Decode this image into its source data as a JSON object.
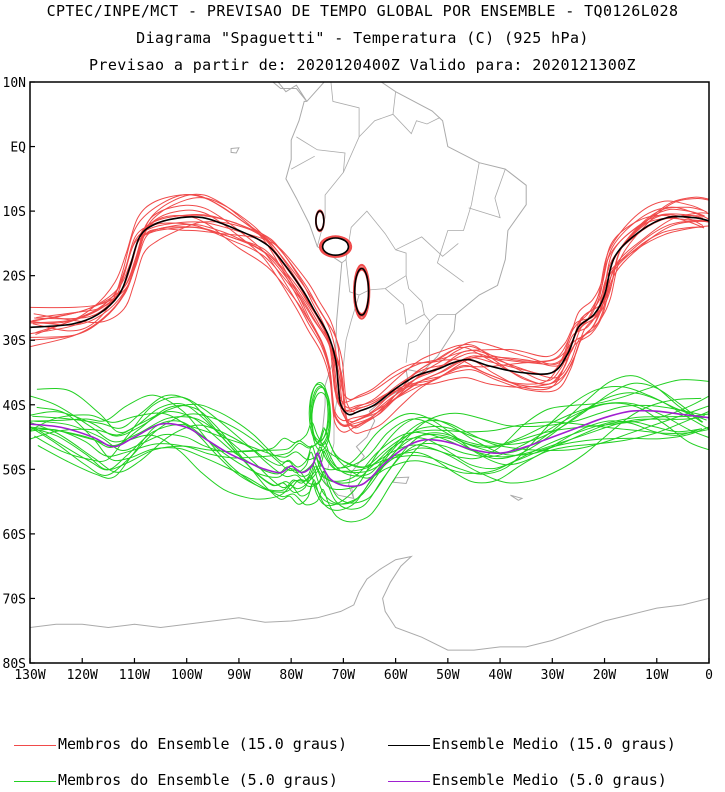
{
  "header": {
    "line1": "CPTEC/INPE/MCT - PREVISAO DE TEMPO GLOBAL POR ENSEMBLE - TQ0126L028",
    "line2": "Diagrama \"Spaguetti\" - Temperatura (C) (925 hPa)",
    "line3": "Previsao a partir de: 2020120400Z  Valido para: 2020121300Z"
  },
  "axes": {
    "lat_ticks": [
      "10N",
      "EQ",
      "10S",
      "20S",
      "30S",
      "40S",
      "50S",
      "60S",
      "70S",
      "80S"
    ],
    "lon_ticks": [
      "130W",
      "120W",
      "110W",
      "100W",
      "90W",
      "80W",
      "70W",
      "60W",
      "50W",
      "40W",
      "30W",
      "20W",
      "10W",
      "0"
    ]
  },
  "legend": {
    "red_members": "Membros do Ensemble (15.0 graus)",
    "black_mean": "Ensemble Medio (15.0 graus)",
    "green_members": "Membros do Ensemble (5.0 graus)",
    "purple_mean": "Ensemble Medio (5.0 graus)"
  },
  "colors": {
    "red_members": "#f04a4a",
    "black_mean": "#000000",
    "green_members": "#22d022",
    "purple_mean": "#a020d0",
    "coastline": "#aaaaaa"
  },
  "chart_data": {
    "type": "line",
    "x_range": [
      "130W",
      "0"
    ],
    "y_range": [
      "80S",
      "10N"
    ],
    "series": [
      {
        "name": "Ensemble Medio (15.0 graus)",
        "lon": [
          -130,
          -122,
          -117,
          -113,
          -111,
          -109,
          -106,
          -101,
          -97,
          -93,
          -90,
          -86,
          -83,
          -78,
          -75.5,
          -73,
          -71.5,
          -71,
          -70.5,
          -69,
          -67,
          -64,
          -60,
          -56,
          -52,
          -49,
          -46,
          -42,
          -36,
          -30,
          -27,
          -25,
          -22,
          -20,
          -18,
          -13,
          -8,
          -3,
          0
        ],
        "lat": [
          -28,
          -27.5,
          -26,
          -23,
          -19,
          -14,
          -12,
          -11,
          -11,
          -12,
          -13,
          -14.5,
          -16.5,
          -22,
          -25.5,
          -29,
          -33,
          -37,
          -40,
          -41.5,
          -41,
          -40,
          -37.5,
          -35.5,
          -34.5,
          -33.5,
          -33,
          -34,
          -35,
          -35,
          -32,
          -28,
          -26,
          -23,
          -17,
          -13,
          -11,
          -11,
          -11.5
        ]
      },
      {
        "name": "Ensemble Medio (5.0 graus)",
        "lon": [
          -130,
          -124,
          -118,
          -114,
          -110,
          -105,
          -100,
          -96,
          -92,
          -88,
          -85,
          -82,
          -80,
          -78,
          -76,
          -75,
          -74,
          -72.5,
          -70,
          -67,
          -65,
          -62,
          -58,
          -55,
          -52,
          -49,
          -45,
          -40,
          -35,
          -30,
          -25,
          -20,
          -15,
          -10,
          -5,
          0
        ],
        "lat": [
          -43,
          -43.5,
          -45,
          -46.5,
          -45,
          -43,
          -43.5,
          -45.5,
          -47.5,
          -49,
          -50,
          -50.5,
          -49.5,
          -50.5,
          -49.5,
          -47.5,
          -49.5,
          -51.5,
          -52.5,
          -52.5,
          -51.5,
          -49,
          -46.5,
          -45.5,
          -45.5,
          -46,
          -47,
          -47.5,
          -46.5,
          -45,
          -43.5,
          -42,
          -41,
          -41,
          -41.5,
          -42
        ]
      }
    ]
  }
}
